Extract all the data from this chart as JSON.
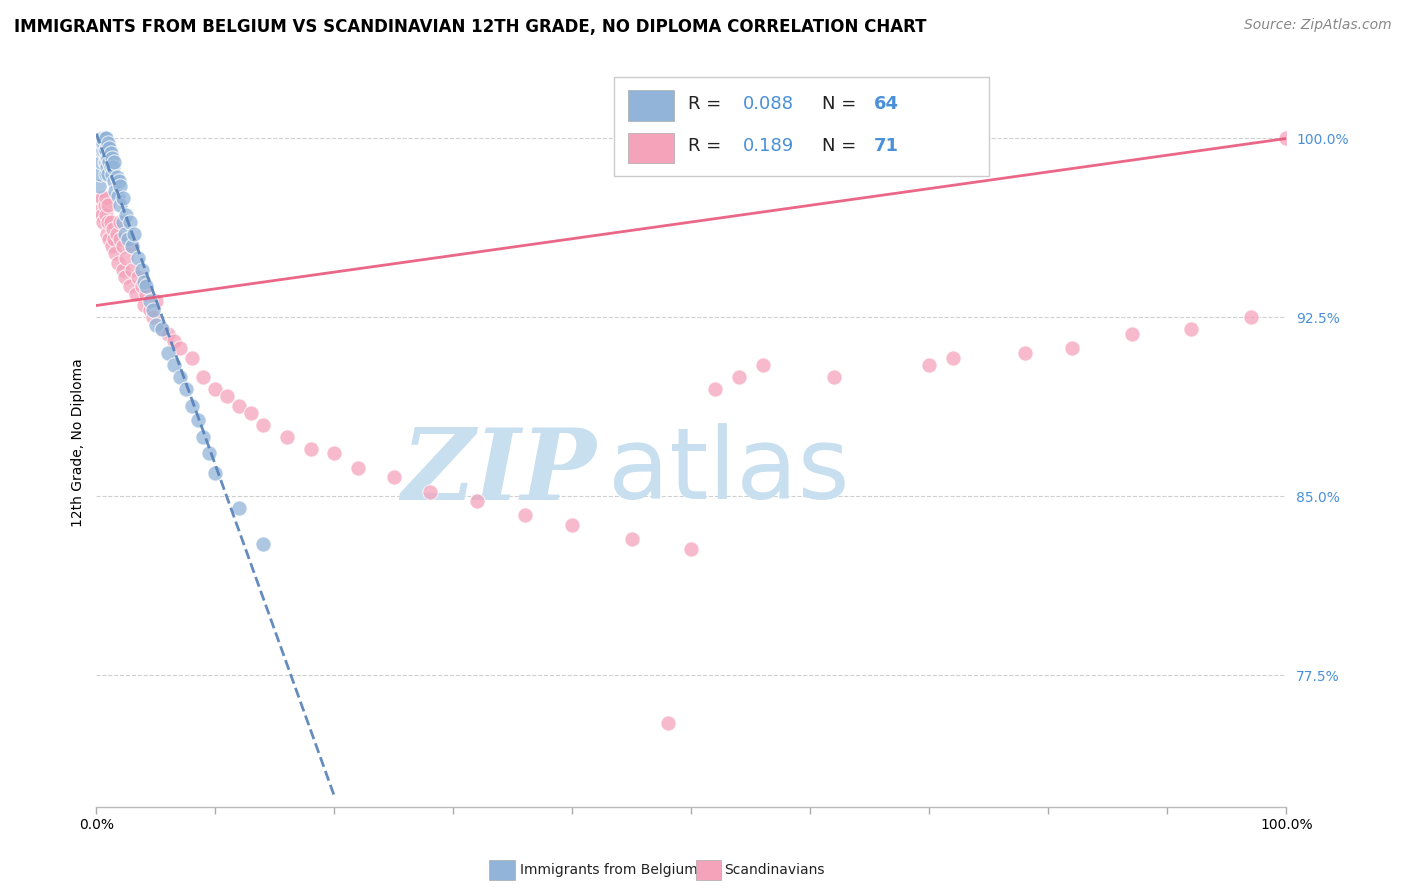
{
  "title": "IMMIGRANTS FROM BELGIUM VS SCANDINAVIAN 12TH GRADE, NO DIPLOMA CORRELATION CHART",
  "source": "Source: ZipAtlas.com",
  "ylabel": "12th Grade, No Diploma",
  "xlim": [
    0.0,
    1.0
  ],
  "ylim": [
    0.72,
    1.025
  ],
  "yticks": [
    0.775,
    0.85,
    0.925,
    1.0
  ],
  "ytick_labels": [
    "77.5%",
    "85.0%",
    "92.5%",
    "100.0%"
  ],
  "xtick_positions": [
    0.0,
    0.1,
    0.2,
    0.3,
    0.4,
    0.5,
    0.6,
    0.7,
    0.8,
    0.9,
    1.0
  ],
  "legend_r_belgium": "0.088",
  "legend_n_belgium": 64,
  "legend_r_scandinavian": "0.189",
  "legend_n_scandinavian": 71,
  "belgium_color": "#92b4d8",
  "scandinavian_color": "#f4a3bb",
  "belgium_line_color": "#5580b8",
  "scandinavian_line_color": "#e8567a",
  "watermark_zip": "ZIP",
  "watermark_atlas": "atlas",
  "watermark_color_zip": "#c8dff0",
  "watermark_color_atlas": "#c8dff0",
  "title_fontsize": 12,
  "axis_label_fontsize": 10,
  "tick_fontsize": 10,
  "source_fontsize": 10,
  "belgium_scatter_x": [
    0.002,
    0.003,
    0.004,
    0.004,
    0.005,
    0.005,
    0.006,
    0.006,
    0.006,
    0.007,
    0.007,
    0.007,
    0.008,
    0.008,
    0.008,
    0.008,
    0.009,
    0.009,
    0.009,
    0.01,
    0.01,
    0.01,
    0.011,
    0.011,
    0.012,
    0.012,
    0.013,
    0.013,
    0.014,
    0.015,
    0.015,
    0.016,
    0.017,
    0.018,
    0.019,
    0.02,
    0.02,
    0.022,
    0.022,
    0.024,
    0.025,
    0.027,
    0.028,
    0.03,
    0.032,
    0.035,
    0.038,
    0.04,
    0.042,
    0.045,
    0.048,
    0.05,
    0.055,
    0.06,
    0.065,
    0.07,
    0.075,
    0.08,
    0.085,
    0.09,
    0.095,
    0.1,
    0.12,
    0.14
  ],
  "belgium_scatter_y": [
    0.98,
    0.985,
    0.99,
    0.995,
    0.998,
    1.0,
    0.995,
    0.998,
    1.0,
    0.99,
    0.995,
    1.0,
    0.985,
    0.99,
    0.995,
    1.0,
    0.988,
    0.992,
    0.997,
    0.985,
    0.992,
    0.998,
    0.99,
    0.996,
    0.988,
    0.994,
    0.985,
    0.992,
    0.988,
    0.982,
    0.99,
    0.978,
    0.984,
    0.976,
    0.982,
    0.972,
    0.98,
    0.965,
    0.975,
    0.96,
    0.968,
    0.958,
    0.965,
    0.955,
    0.96,
    0.95,
    0.945,
    0.94,
    0.938,
    0.932,
    0.928,
    0.922,
    0.92,
    0.91,
    0.905,
    0.9,
    0.895,
    0.888,
    0.882,
    0.875,
    0.868,
    0.86,
    0.845,
    0.83
  ],
  "scandinavian_scatter_x": [
    0.003,
    0.004,
    0.005,
    0.005,
    0.006,
    0.007,
    0.008,
    0.008,
    0.009,
    0.01,
    0.01,
    0.011,
    0.012,
    0.013,
    0.014,
    0.015,
    0.016,
    0.017,
    0.018,
    0.02,
    0.02,
    0.022,
    0.022,
    0.024,
    0.025,
    0.028,
    0.03,
    0.03,
    0.033,
    0.035,
    0.038,
    0.04,
    0.042,
    0.045,
    0.048,
    0.05,
    0.055,
    0.06,
    0.065,
    0.07,
    0.08,
    0.09,
    0.1,
    0.11,
    0.12,
    0.13,
    0.14,
    0.16,
    0.18,
    0.2,
    0.22,
    0.25,
    0.28,
    0.32,
    0.36,
    0.4,
    0.45,
    0.5,
    0.52,
    0.54,
    0.56,
    0.62,
    0.7,
    0.72,
    0.78,
    0.82,
    0.87,
    0.92,
    0.97,
    1.0,
    0.48
  ],
  "scandinavian_scatter_y": [
    0.97,
    0.975,
    0.968,
    0.975,
    0.965,
    0.972,
    0.968,
    0.975,
    0.96,
    0.965,
    0.972,
    0.958,
    0.965,
    0.955,
    0.962,
    0.958,
    0.952,
    0.96,
    0.948,
    0.958,
    0.965,
    0.945,
    0.955,
    0.942,
    0.95,
    0.938,
    0.945,
    0.955,
    0.935,
    0.942,
    0.938,
    0.93,
    0.935,
    0.928,
    0.925,
    0.932,
    0.92,
    0.918,
    0.915,
    0.912,
    0.908,
    0.9,
    0.895,
    0.892,
    0.888,
    0.885,
    0.88,
    0.875,
    0.87,
    0.868,
    0.862,
    0.858,
    0.852,
    0.848,
    0.842,
    0.838,
    0.832,
    0.828,
    0.895,
    0.9,
    0.905,
    0.9,
    0.905,
    0.908,
    0.91,
    0.912,
    0.918,
    0.92,
    0.925,
    1.0,
    0.755
  ],
  "scan_line_start_x": 0.0,
  "scan_line_end_x": 1.0,
  "scan_line_start_y": 0.93,
  "scan_line_end_y": 1.0
}
